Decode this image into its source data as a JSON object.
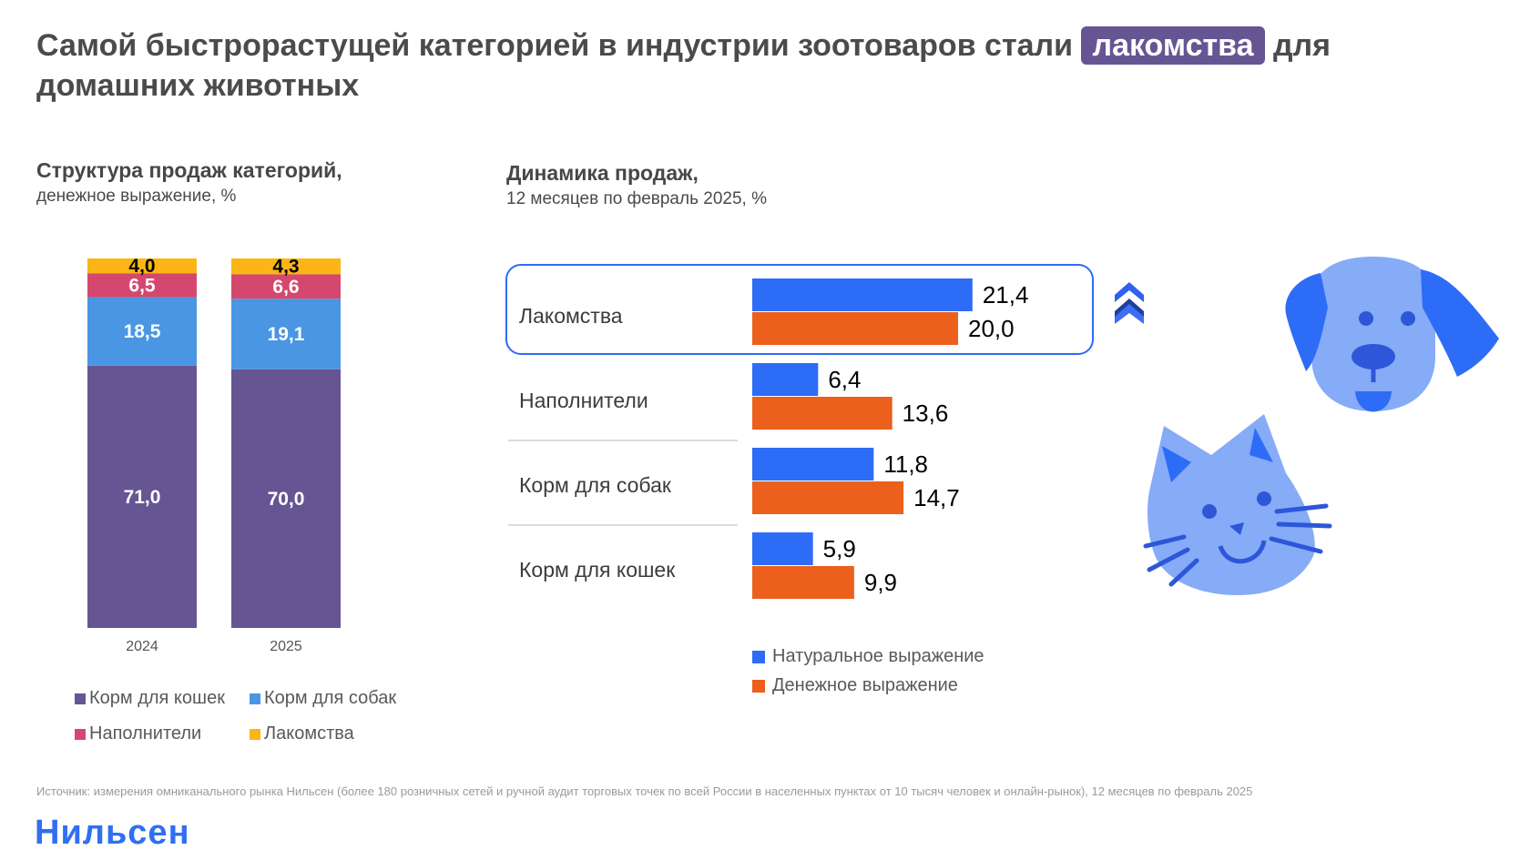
{
  "header": {
    "title_part1": "Самой быстрорастущей категорией в индустрии зоотоваров стали ",
    "title_highlight": "лакомства",
    "title_part2": " для домашних животных"
  },
  "left_chart": {
    "heading": "Структура продаж категорий,",
    "note": "денежное выражение, %"
  },
  "right_chart": {
    "heading": "Динамика продаж,",
    "note": "12 месяцев по февраль 2025, %"
  },
  "chart_data": [
    {
      "type": "bar",
      "stacked": true,
      "categories": [
        "2024",
        "2025"
      ],
      "series": [
        {
          "name": "Корм для кошек",
          "values": [
            71.0,
            70.0
          ],
          "labels": [
            "71,0",
            "70,0"
          ],
          "color": "#665593"
        },
        {
          "name": "Корм для собак",
          "values": [
            18.5,
            19.1
          ],
          "labels": [
            "18,5",
            "19,1"
          ],
          "color": "#4a96e2"
        },
        {
          "name": "Наполнители",
          "values": [
            6.5,
            6.6
          ],
          "labels": [
            "6,5",
            "6,6"
          ],
          "color": "#d4486f"
        },
        {
          "name": "Лакомства",
          "values": [
            4.0,
            4.3
          ],
          "labels": [
            "4,0",
            "4,3"
          ],
          "color": "#fbb516"
        }
      ],
      "ylim": [
        0,
        100
      ],
      "legend": "bottom"
    },
    {
      "type": "bar",
      "orientation": "horizontal",
      "categories": [
        "Лакомства",
        "Наполнители",
        "Корм для собак",
        "Корм для кошек"
      ],
      "series": [
        {
          "name": "Натуральное выражение",
          "values": [
            21.4,
            6.4,
            11.8,
            5.9
          ],
          "labels": [
            "21,4",
            "6,4",
            "11,8",
            "5,9"
          ],
          "color": "#2d6cf6"
        },
        {
          "name": "Денежное выражение",
          "values": [
            20.0,
            13.6,
            14.7,
            9.9
          ],
          "labels": [
            "20,0",
            "13,6",
            "14,7",
            "9,9"
          ],
          "color": "#ec5f1c"
        }
      ],
      "highlighted_category": "Лакомства",
      "legend": "bottom-left"
    }
  ],
  "source": "Источник: измерения омниканального рынка Нильсен (более 180 розничных сетей и ручной аудит торговых точек по всей России в населенных пунктах от 10 тысяч человек и онлайн-рынок), 12 месяцев по февраль 2025",
  "logo": "Нильсен",
  "icons": [
    "double-chevron-up-icon",
    "dog-icon",
    "cat-icon"
  ]
}
